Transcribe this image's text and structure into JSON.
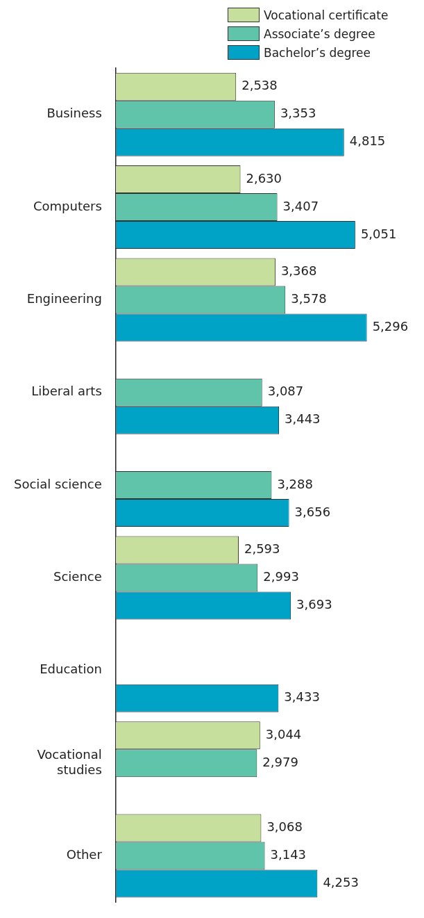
{
  "chart_data": {
    "type": "bar",
    "orientation": "horizontal",
    "categories": [
      "Business",
      "Computers",
      "Engineering",
      "Liberal arts",
      "Social science",
      "Science",
      "Education",
      "Vocational studies",
      "Other"
    ],
    "series": [
      {
        "name": "Vocational certificate",
        "color": "#c6df9c",
        "values": [
          2538,
          2630,
          3368,
          null,
          null,
          2593,
          null,
          3044,
          3068
        ],
        "value_labels": [
          "2,538",
          "2,630",
          "3,368",
          null,
          null,
          "2,593",
          null,
          "3,044",
          "3,068"
        ]
      },
      {
        "name": "Associate’s degree",
        "color": "#5fc4aa",
        "values": [
          3353,
          3407,
          3578,
          3087,
          3288,
          2993,
          null,
          2979,
          3143
        ],
        "value_labels": [
          "3,353",
          "3,407",
          "3,578",
          "3,087",
          "3,288",
          "2,993",
          null,
          "2,979",
          "3,143"
        ]
      },
      {
        "name": "Bachelor’s degree",
        "color": "#00a3c6",
        "values": [
          4815,
          5051,
          5296,
          3443,
          3656,
          3693,
          3433,
          null,
          4253
        ],
        "value_labels": [
          "4,815",
          "5,051",
          "5,296",
          "3,443",
          "3,656",
          "3,693",
          "3,433",
          null,
          "4,253"
        ]
      }
    ],
    "legend": "top right",
    "tick_labels": "y"
  }
}
